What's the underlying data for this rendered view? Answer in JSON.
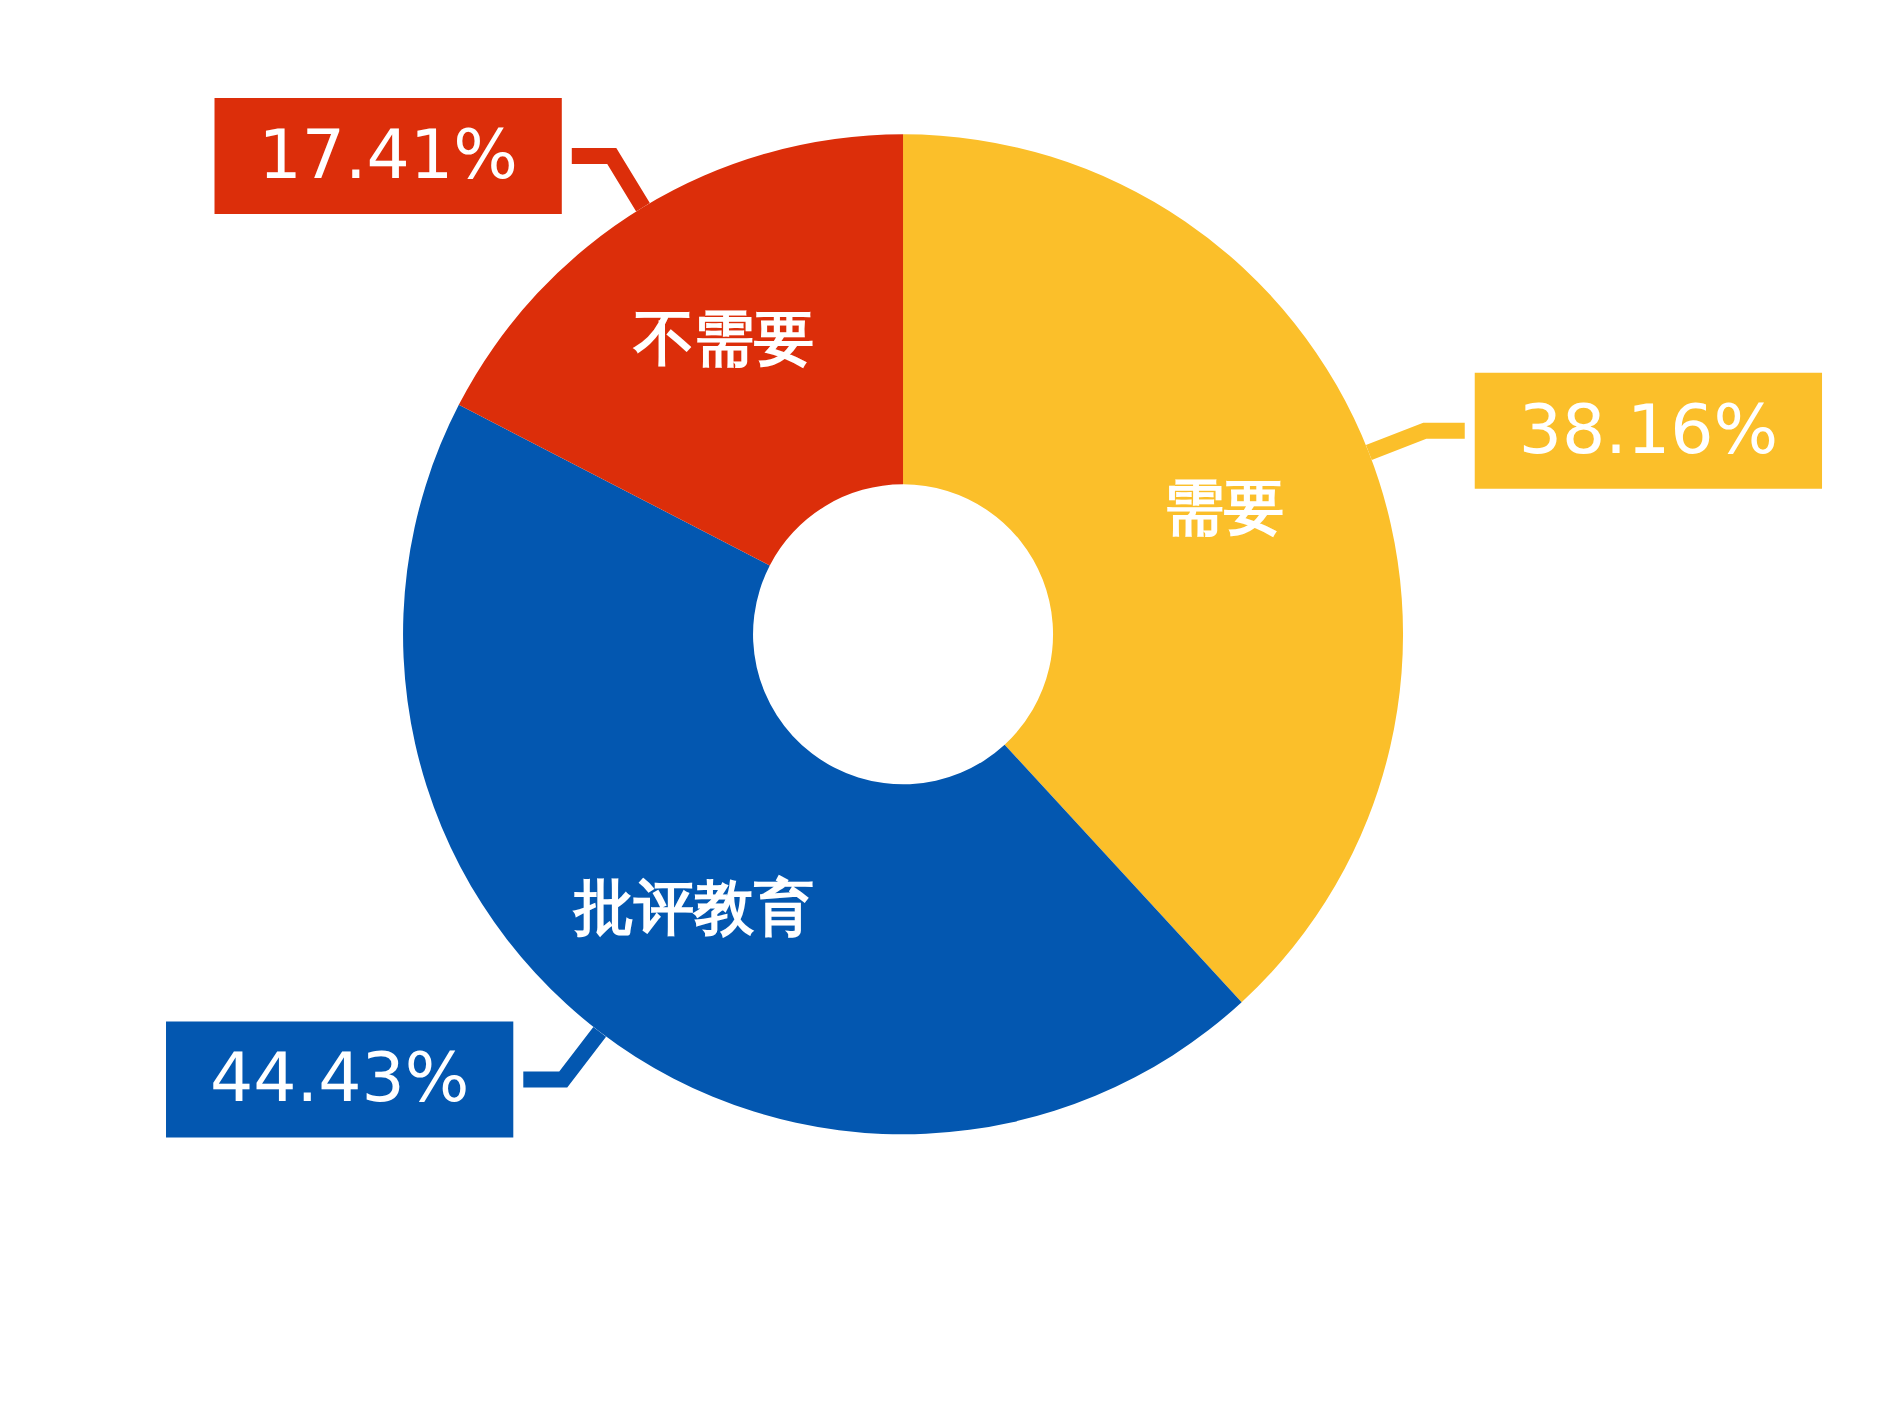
{
  "chart_data": {
    "type": "donut",
    "categories": [
      "需要",
      "批评教育",
      "不需要"
    ],
    "values": [
      38.16,
      44.43,
      17.41
    ],
    "colors": [
      "#fbbf2a",
      "#0357b0",
      "#dc2e0a"
    ],
    "value_labels": [
      "38.16%",
      "44.43%",
      "17.41%"
    ],
    "legend": false
  }
}
